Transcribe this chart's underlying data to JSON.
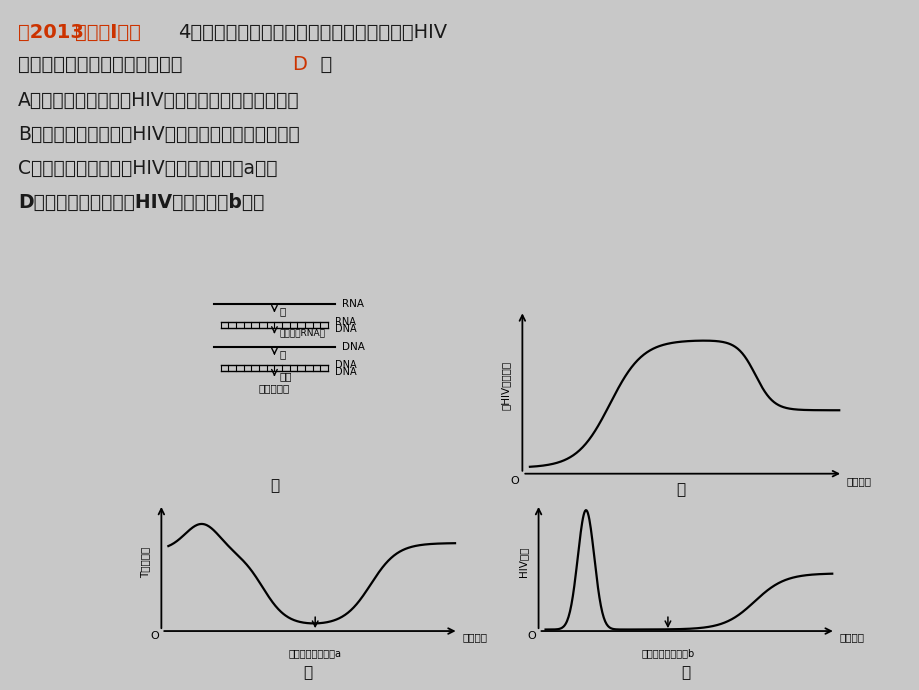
{
  "bg_color": "#c8c8c8",
  "panel_bg": "#ffffff",
  "title_parts": [
    {
      "text": "（2013",
      "color": "#cc3300",
      "bold": true
    },
    {
      "text": "新课标Ⅰ卷）",
      "color": "#cc3300",
      "bold": true
    },
    {
      "text": "4．示意图甲、乙、丙、丁为某实验动物感染HIV",
      "color": "#1a1a1a",
      "bold": false
    }
  ],
  "line2_before": "后的情况。下列叙述错误的是（",
  "line2_answer": "D",
  "line2_after": "　）",
  "options": [
    "A．从图甲可以看出，HIV感染过程中存在逆转录现象",
    "B．从图乙可以看出，HIV侵入后机体能产生体液免疫",
    "C．从图丙可以推测，HIV可能对实验药物a敏感",
    "D．从图丁可以看出，HIV对实验药物b敏感"
  ],
  "jia_label": "甲",
  "yi_label": "乙",
  "bing_label": "丙",
  "ding_label": "丁",
  "yi_ylabel": "抗HIV抗体水平",
  "yi_xlabel": "感染时间",
  "bing_ylabel": "T细胞数量",
  "bing_xlabel": "感染时间",
  "bing_drug": "感染加入实验药物a",
  "ding_ylabel": "HIV浓度",
  "ding_xlabel": "感染时间",
  "ding_drug": "感染加入实验药物b",
  "rna_label": "RNA",
  "dna_label": "DNA",
  "enzyme_label": "酶",
  "degrade_label": "酶（降解RNA）",
  "integrate_label": "整合",
  "host_label": "宿主染色体"
}
